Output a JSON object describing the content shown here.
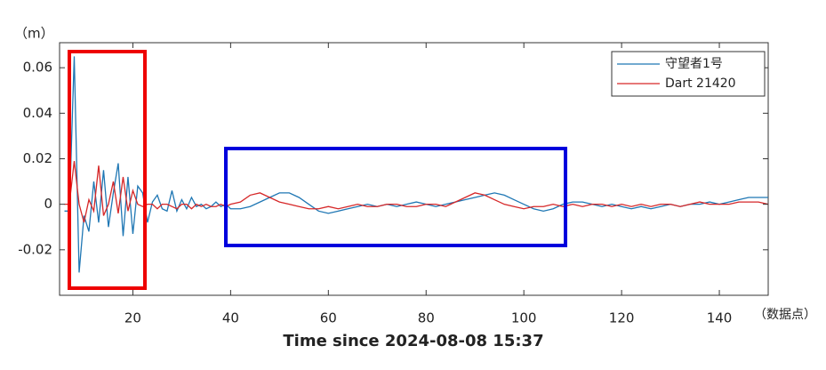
{
  "chart_data": {
    "type": "line",
    "x_label": "Time since 2024-08-08 15:37",
    "y_label": "（m）",
    "x_unit_label": "（数据点）",
    "xlim": [
      5,
      150
    ],
    "ylim": [
      -0.04,
      0.071
    ],
    "xticks": [
      20,
      40,
      60,
      80,
      100,
      120,
      140
    ],
    "yticks": [
      -0.02,
      0,
      0.02,
      0.04,
      0.06
    ],
    "legend": "northeast",
    "x": [
      6,
      7,
      8,
      9,
      10,
      11,
      12,
      13,
      14,
      15,
      16,
      17,
      18,
      19,
      20,
      21,
      22,
      23,
      24,
      25,
      26,
      27,
      28,
      29,
      30,
      31,
      32,
      33,
      34,
      35,
      36,
      37,
      38,
      39,
      40,
      42,
      44,
      46,
      48,
      50,
      52,
      54,
      56,
      58,
      60,
      62,
      64,
      66,
      68,
      70,
      72,
      74,
      76,
      78,
      80,
      82,
      84,
      86,
      88,
      90,
      92,
      94,
      96,
      98,
      100,
      102,
      104,
      106,
      108,
      110,
      112,
      114,
      116,
      118,
      120,
      122,
      124,
      126,
      128,
      130,
      132,
      134,
      136,
      138,
      140,
      142,
      144,
      146,
      148,
      150
    ],
    "series": [
      {
        "name": "守望者1号",
        "color": "#1f77b4",
        "values": [
          -0.003,
          -0.003,
          0.065,
          -0.03,
          -0.005,
          -0.012,
          0.01,
          -0.008,
          0.015,
          -0.01,
          0.005,
          0.018,
          -0.014,
          0.012,
          -0.013,
          0.008,
          0.005,
          -0.008,
          0.001,
          0.004,
          -0.002,
          -0.003,
          0.006,
          -0.003,
          0.002,
          -0.002,
          0.003,
          -0.001,
          0,
          -0.002,
          -0.001,
          0.001,
          -0.001,
          0,
          -0.002,
          -0.002,
          -0.001,
          0.001,
          0.003,
          0.005,
          0.005,
          0.003,
          0,
          -0.003,
          -0.004,
          -0.003,
          -0.002,
          -0.001,
          0,
          -0.001,
          0,
          -0.001,
          0,
          0.001,
          0,
          -0.001,
          0,
          0.001,
          0.002,
          0.003,
          0.004,
          0.005,
          0.004,
          0.002,
          0,
          -0.002,
          -0.003,
          -0.002,
          0,
          0.001,
          0.001,
          0,
          -0.001,
          0,
          -0.001,
          -0.002,
          -0.001,
          -0.002,
          -0.001,
          0,
          -0.001,
          0,
          0,
          0.001,
          0,
          0.001,
          0.002,
          0.003,
          0.003,
          0.003
        ]
      },
      {
        "name": "Dart 21420",
        "color": "#d62728",
        "values": [
          0,
          0,
          0.019,
          0,
          -0.008,
          0.002,
          -0.003,
          0.017,
          -0.005,
          0,
          0.01,
          -0.004,
          0.012,
          -0.003,
          0.006,
          0,
          -0.001,
          0,
          0,
          -0.002,
          0,
          0,
          -0.001,
          -0.002,
          0,
          0,
          -0.002,
          0,
          -0.001,
          0,
          -0.001,
          -0.001,
          0,
          -0.001,
          0,
          0.001,
          0.004,
          0.005,
          0.003,
          0.001,
          0,
          -0.001,
          -0.002,
          -0.002,
          -0.001,
          -0.002,
          -0.001,
          0,
          -0.001,
          -0.001,
          0,
          0,
          -0.001,
          -0.001,
          0,
          0,
          -0.001,
          0.001,
          0.003,
          0.005,
          0.004,
          0.002,
          0,
          -0.001,
          -0.002,
          -0.001,
          -0.001,
          0,
          -0.001,
          0,
          -0.001,
          0,
          0,
          -0.001,
          0,
          -0.001,
          0,
          -0.001,
          0,
          0,
          -0.001,
          0,
          0.001,
          0,
          0,
          0,
          0.001,
          0.001,
          0.001,
          0
        ]
      }
    ]
  }
}
